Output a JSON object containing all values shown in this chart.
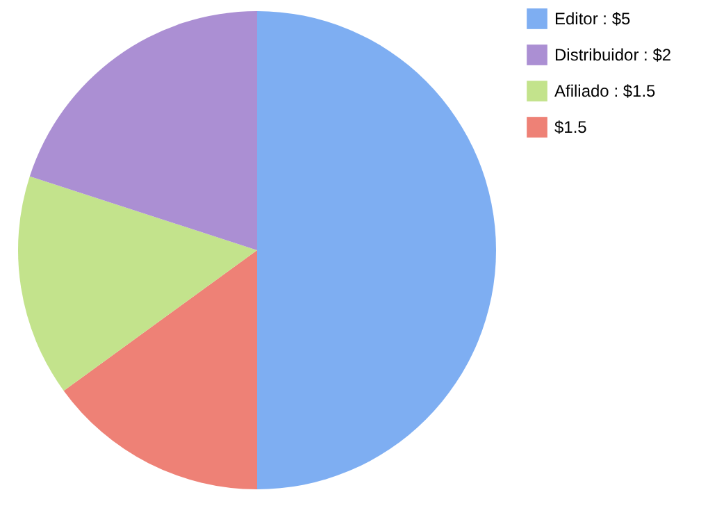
{
  "chart_data": {
    "type": "pie",
    "categories": [
      "Editor",
      "Distribuidor",
      "Afiliado",
      null
    ],
    "values": [
      5,
      2,
      1.5,
      1.5
    ],
    "value_labels": [
      "$5",
      "$2",
      "$1.5",
      "$1.5"
    ],
    "colors": [
      "#7eaef2",
      "#ab8fd3",
      "#c3e38c",
      "#ee8176"
    ],
    "legend": "right"
  }
}
